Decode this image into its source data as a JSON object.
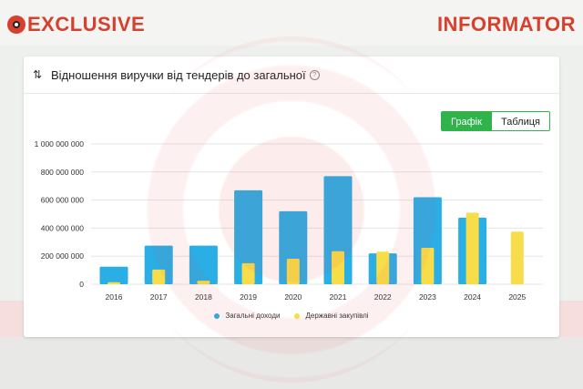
{
  "brand": {
    "left_text": "EXCLUSIVE",
    "right_text": "INFORMATOR"
  },
  "header": {
    "title": "Відношення виручки від тендерів до загальної",
    "help": "?"
  },
  "toggle": {
    "chart_label": "Графік",
    "table_label": "Таблиця"
  },
  "colors": {
    "total": "#29aee6",
    "gov": "#f7dd4a",
    "accent": "#2fb34a",
    "brand": "#d8402e"
  },
  "chart_data": {
    "type": "bar",
    "categories": [
      "2016",
      "2017",
      "2018",
      "2019",
      "2020",
      "2021",
      "2022",
      "2023",
      "2024",
      "2025"
    ],
    "series": [
      {
        "name": "Загальні доходи",
        "values": [
          125000000,
          275000000,
          275000000,
          670000000,
          520000000,
          770000000,
          220000000,
          620000000,
          475000000,
          0
        ]
      },
      {
        "name": "Державні закупівлі",
        "values": [
          15000000,
          105000000,
          25000000,
          150000000,
          182000000,
          235000000,
          232000000,
          260000000,
          510000000,
          375000000
        ]
      }
    ],
    "yticks": [
      0,
      200000000,
      400000000,
      600000000,
      800000000,
      1000000000
    ],
    "ytick_labels": [
      "0",
      "200 000 000",
      "400 000 000",
      "600 000 000",
      "800 000 000",
      "1 000 000 000"
    ],
    "ylim": [
      0,
      1000000000
    ],
    "grid": true,
    "legend": "bottom"
  }
}
